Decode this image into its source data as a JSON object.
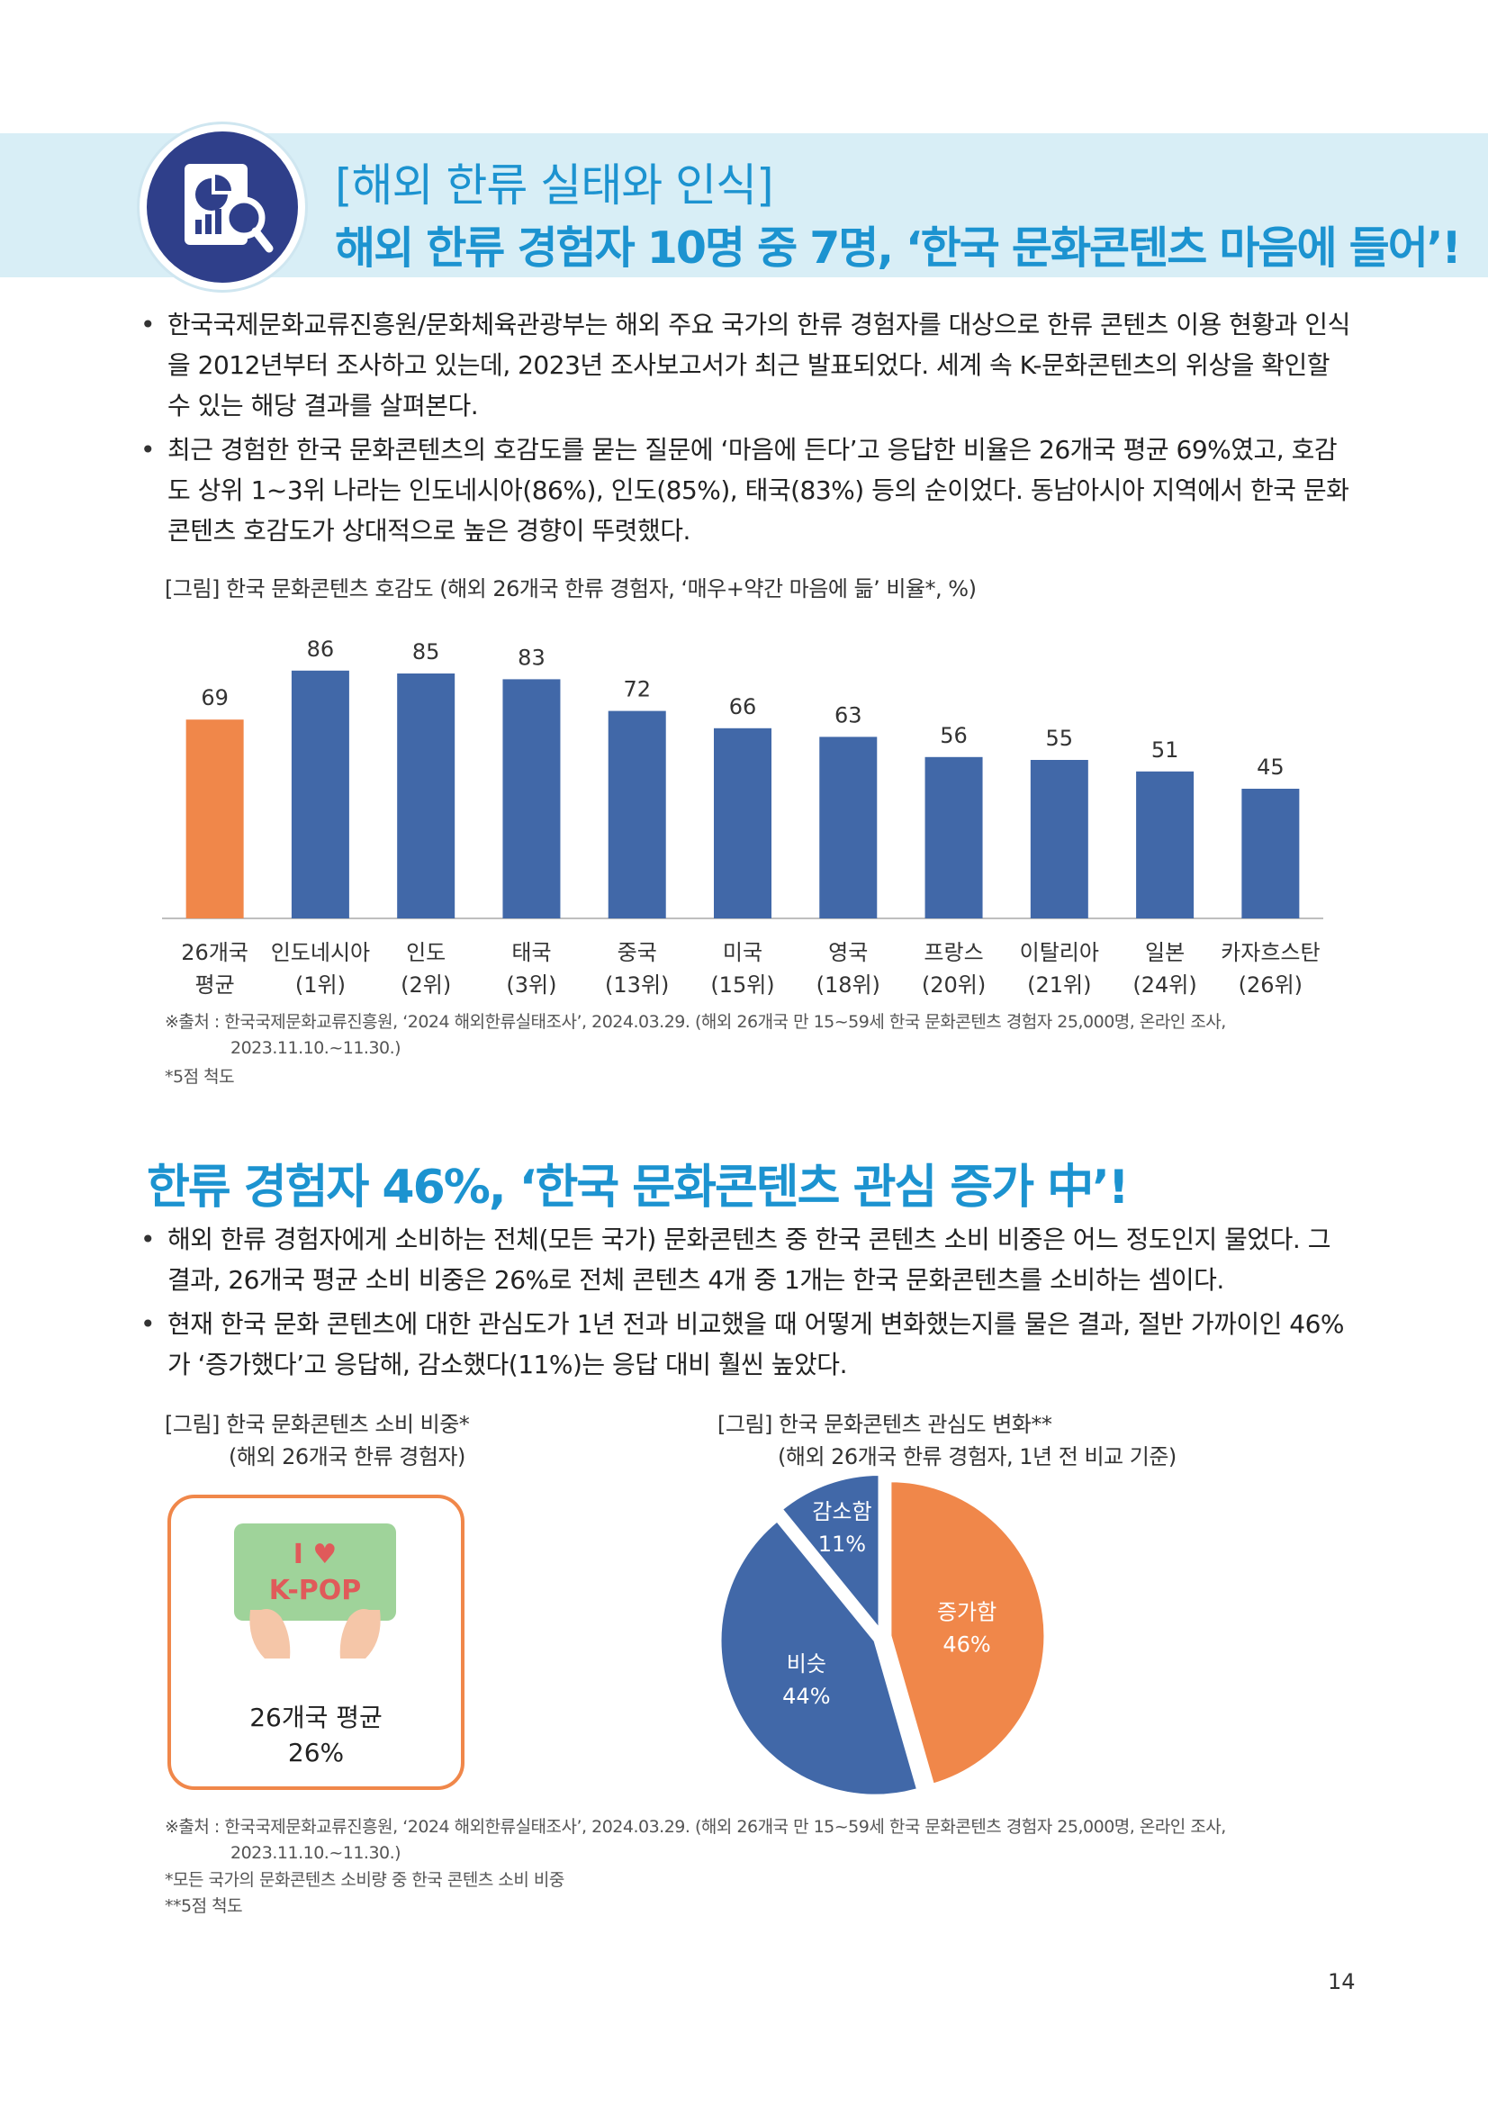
{
  "header": {
    "subtitle": "[해외 한류 실태와 인식]",
    "title": "해외 한류 경험자 10명 중 7명, ‘한국 문화콘텐츠 마음에 들어’!",
    "badge_icon": "chart-magnifier-icon"
  },
  "section1": {
    "bullets": [
      "한국국제문화교류진흥원/문화체육관광부는 해외 주요 국가의 한류 경험자를 대상으로 한류 콘텐츠 이용 현황과 인식을 2012년부터 조사하고 있는데, 2023년 조사보고서가 최근 발표되었다. 세계 속 K-문화콘텐츠의 위상을 확인할 수 있는 해당 결과를 살펴본다.",
      "최근 경험한 한국 문화콘텐츠의 호감도를 묻는 질문에 ‘마음에 든다’고 응답한 비율은 26개국 평균 69%였고, 호감도 상위 1~3위 나라는 인도네시아(86%), 인도(85%), 태국(83%) 등의 순이었다. 동남아시아 지역에서 한국 문화콘텐츠 호감도가 상대적으로 높은 경향이 뚜렷했다."
    ],
    "figure_caption": "[그림] 한국 문화콘텐츠 호감도 (해외 26개국 한류 경험자, ‘매우+약간 마음에 듦’ 비율*, %)",
    "source_line1": "※출처 : 한국국제문화교류진흥원, ‘2024 해외한류실태조사’, 2024.03.29. (해외 26개국 만 15~59세 한국 문화콘텐츠 경험자 25,000명, 온라인 조사,",
    "source_line2": "2023.11.10.~11.30.)",
    "footnote": "*5점 척도"
  },
  "section2": {
    "title": "한류 경험자 46%, ‘한국 문화콘텐츠 관심 증가 中’!",
    "bullets": [
      "해외 한류 경험자에게 소비하는 전체(모든 국가) 문화콘텐츠 중 한국 콘텐츠 소비 비중은 어느 정도인지 물었다. 그 결과, 26개국 평균 소비 비중은 26%로 전체 콘텐츠 4개 중 1개는 한국 문화콘텐츠를 소비하는 셈이다.",
      "현재 한국 문화 콘텐츠에 대한 관심도가 1년 전과 비교했을 때 어떻게 변화했는지를 물은 결과, 절반 가까이인 46%가 ‘증가했다’고 응답해, 감소했다(11%)는 응답 대비 훨씬 높았다."
    ],
    "fig_left_caption_1": "[그림] 한국 문화콘텐츠 소비 비중*",
    "fig_left_caption_2": "(해외 26개국 한류 경험자)",
    "kpop_sign_line1": "I ♥",
    "kpop_sign_line2": "K-POP",
    "avg_label": "26개국 평균",
    "avg_value": "26%",
    "fig_right_caption_1": "[그림] 한국 문화콘텐츠 관심도 변화**",
    "fig_right_caption_2": "(해외 26개국 한류 경험자, 1년 전 비교 기준)",
    "source_line1": "※출처 : 한국국제문화교류진흥원, ‘2024 해외한류실태조사’, 2024.03.29. (해외 26개국 만 15~59세 한국 문화콘텐츠 경험자 25,000명, 온라인 조사,",
    "source_line2": "2023.11.10.~11.30.)",
    "footnote1": "*모든 국가의 문화콘텐츠 소비량 중 한국 콘텐츠 소비 비중",
    "footnote2": "**5점 척도"
  },
  "page_number": "14",
  "colors": {
    "accent_blue": "#1c93d0",
    "bar_blue": "#4168a8",
    "bar_orange": "#f0874a",
    "banner_bg": "#d8eef6",
    "badge_navy": "#2f3f8a"
  },
  "chart_data": [
    {
      "type": "bar",
      "title": "한국 문화콘텐츠 호감도",
      "categories": [
        [
          "26개국",
          "평균"
        ],
        [
          "인도네시아",
          "(1위)"
        ],
        [
          "인도",
          "(2위)"
        ],
        [
          "태국",
          "(3위)"
        ],
        [
          "중국",
          "(13위)"
        ],
        [
          "미국",
          "(15위)"
        ],
        [
          "영국",
          "(18위)"
        ],
        [
          "프랑스",
          "(20위)"
        ],
        [
          "이탈리아",
          "(21위)"
        ],
        [
          "일본",
          "(24위)"
        ],
        [
          "카자흐스탄",
          "(26위)"
        ]
      ],
      "values": [
        69,
        86,
        85,
        83,
        72,
        66,
        63,
        56,
        55,
        51,
        45
      ],
      "highlight_index": 0,
      "ylim": [
        0,
        100
      ],
      "grid": false,
      "legend": "none"
    },
    {
      "type": "pie",
      "title": "한국 문화콘텐츠 관심도 변화",
      "slices": [
        {
          "label": "증가함",
          "value": 46,
          "value_label": "46%",
          "color": "#f0874a"
        },
        {
          "label": "비슷",
          "value": 44,
          "value_label": "44%",
          "color": "#4168a8"
        },
        {
          "label": "감소함",
          "value": 11,
          "value_label": "11%",
          "color": "#4168a8"
        }
      ]
    }
  ]
}
